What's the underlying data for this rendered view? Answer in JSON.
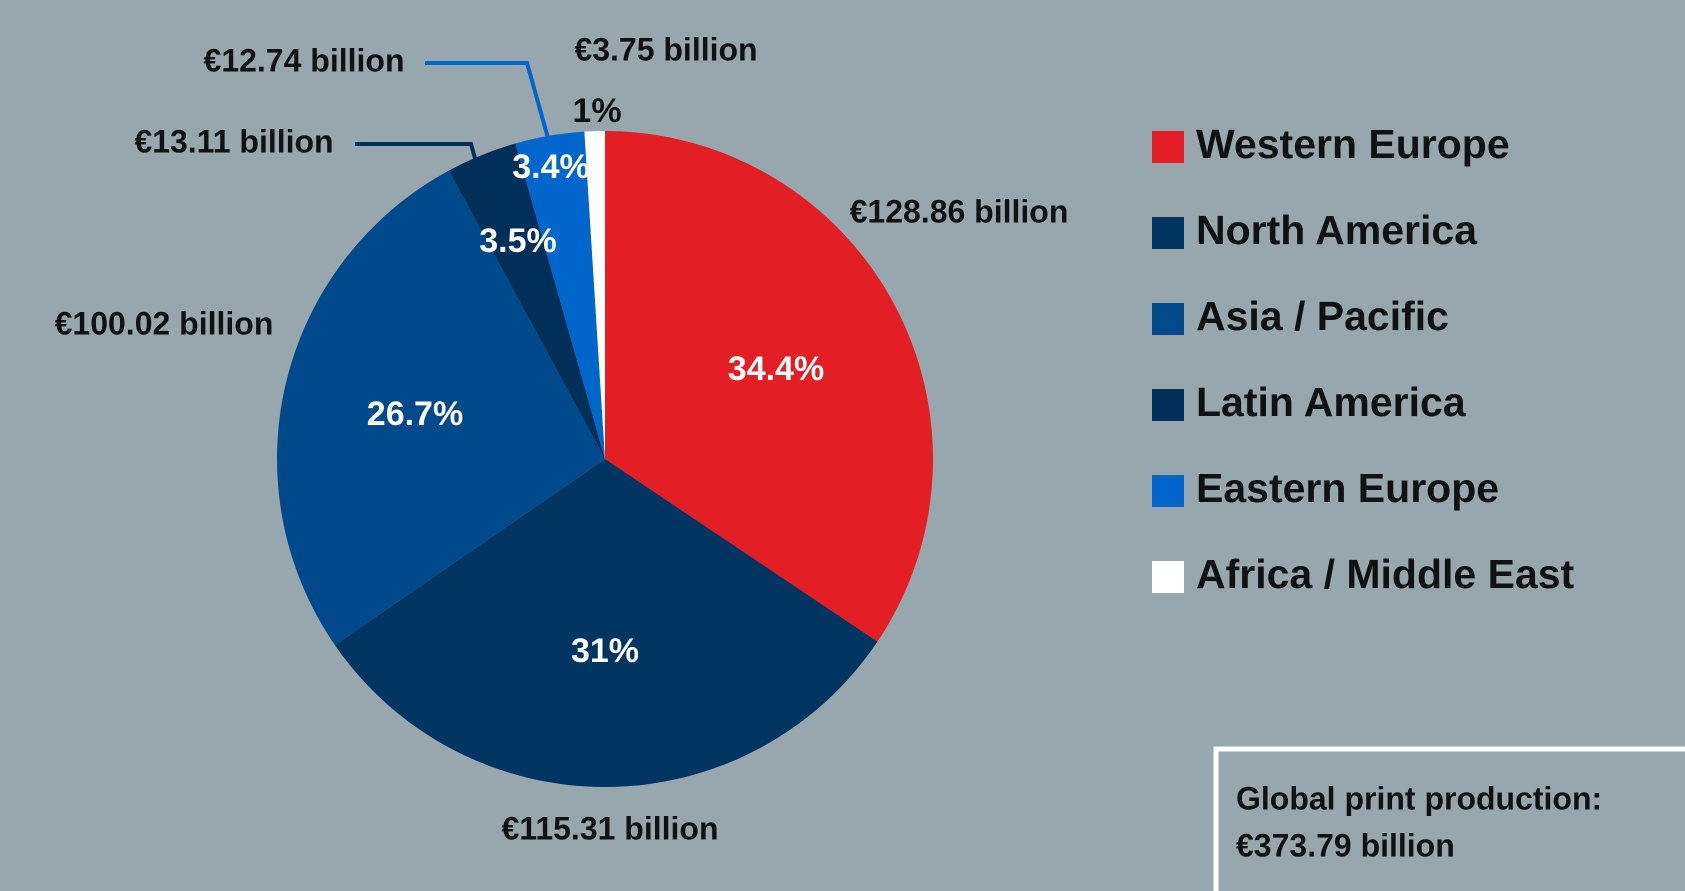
{
  "chart_data": {
    "type": "pie",
    "categories": [
      "Western Europe",
      "North America",
      "Asia / Pacific",
      "Latin America",
      "Eastern Europe",
      "Africa / Middle East"
    ],
    "values": [
      34.4,
      31,
      26.7,
      3.5,
      3.4,
      1
    ],
    "value_labels": [
      "34.4%",
      "31%",
      "26.7%",
      "3.5%",
      "3.4%",
      "1%"
    ],
    "amounts": [
      128.86,
      115.31,
      100.02,
      13.11,
      12.74,
      3.75
    ],
    "amount_labels": [
      "€128.86 billion",
      "€115.31 billion",
      "€100.02 billion",
      "€13.11 billion",
      "€12.74 billion",
      "€3.75 billion"
    ],
    "colors": [
      "#e31e24",
      "#003461",
      "#004a8c",
      "#00305a",
      "#0066cc",
      "#ffffff"
    ],
    "legend": "right",
    "note": {
      "title": "Global print production:",
      "total": 373.79,
      "total_label": "€373.79 billion"
    }
  }
}
